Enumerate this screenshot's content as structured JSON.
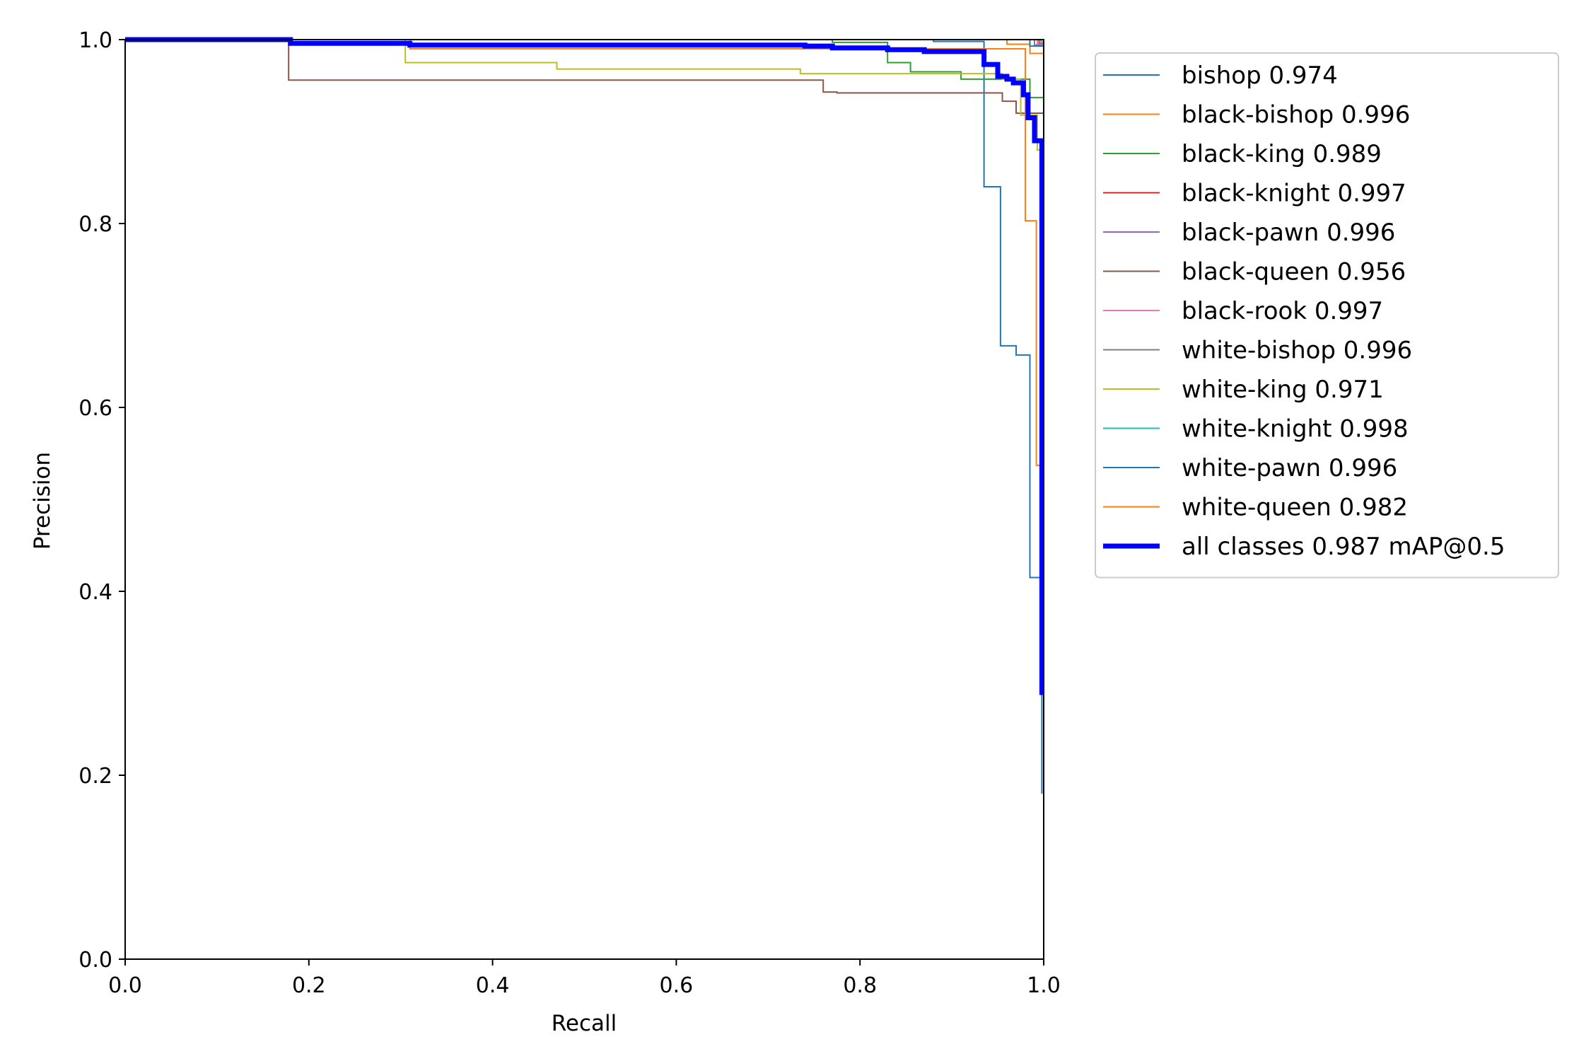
{
  "chart_data": {
    "type": "line",
    "title": "",
    "xlabel": "Recall",
    "ylabel": "Precision",
    "xlim": [
      0,
      1
    ],
    "ylim": [
      0,
      1
    ],
    "xticks": [
      0.0,
      0.2,
      0.4,
      0.6,
      0.8,
      1.0
    ],
    "yticks": [
      0.0,
      0.2,
      0.4,
      0.6,
      0.8,
      1.0
    ],
    "xtick_labels": [
      "0.0",
      "0.2",
      "0.4",
      "0.6",
      "0.8",
      "1.0"
    ],
    "ytick_labels": [
      "0.0",
      "0.2",
      "0.4",
      "0.6",
      "0.8",
      "1.0"
    ],
    "grid": false,
    "legend_position": "outside-right-top",
    "series": [
      {
        "name": "bishop 0.974",
        "color": "#1f77b4",
        "width": "thin",
        "x": [
          0,
          0.88,
          0.88,
          0.935,
          0.935,
          0.953,
          0.953,
          0.97,
          0.97,
          0.985,
          0.985,
          0.998,
          0.998
        ],
        "y": [
          1.0,
          1.0,
          0.998,
          0.998,
          0.84,
          0.84,
          0.667,
          0.667,
          0.657,
          0.657,
          0.415,
          0.415,
          0.18
        ]
      },
      {
        "name": "black-bishop 0.996",
        "color": "#ff7f0e",
        "width": "thin",
        "x": [
          0,
          0.96,
          0.96,
          0.985,
          0.985,
          1.0,
          1.0
        ],
        "y": [
          1.0,
          1.0,
          0.995,
          0.995,
          0.985,
          0.985,
          0.0
        ]
      },
      {
        "name": "black-king 0.989",
        "color": "#2ca02c",
        "width": "thin",
        "x": [
          0,
          0.77,
          0.77,
          0.83,
          0.83,
          0.855,
          0.855,
          0.91,
          0.91,
          0.985,
          0.985,
          1.0,
          1.0
        ],
        "y": [
          1.0,
          1.0,
          0.997,
          0.997,
          0.975,
          0.975,
          0.965,
          0.965,
          0.957,
          0.957,
          0.937,
          0.937,
          0.0
        ]
      },
      {
        "name": "black-knight 0.997",
        "color": "#d62728",
        "width": "thin",
        "x": [
          0,
          0.995,
          0.995,
          1.0,
          1.0
        ],
        "y": [
          1.0,
          1.0,
          0.996,
          0.996,
          0.0
        ]
      },
      {
        "name": "black-pawn 0.996",
        "color": "#9467bd",
        "width": "thin",
        "x": [
          0,
          0.99,
          0.99,
          1.0,
          1.0
        ],
        "y": [
          1.0,
          1.0,
          0.993,
          0.993,
          0.0
        ]
      },
      {
        "name": "black-queen 0.956",
        "color": "#8c564b",
        "width": "thin",
        "x": [
          0,
          0.178,
          0.178,
          0.76,
          0.76,
          0.775,
          0.775,
          0.955,
          0.955,
          0.97,
          0.97,
          1.0,
          1.0
        ],
        "y": [
          1.0,
          1.0,
          0.956,
          0.956,
          0.943,
          0.943,
          0.942,
          0.942,
          0.933,
          0.933,
          0.92,
          0.92,
          0.0
        ]
      },
      {
        "name": "black-rook 0.997",
        "color": "#e377c2",
        "width": "thin",
        "x": [
          0,
          0.993,
          0.993,
          1.0,
          1.0
        ],
        "y": [
          1.0,
          1.0,
          0.995,
          0.995,
          0.0
        ]
      },
      {
        "name": "white-bishop 0.996",
        "color": "#7f7f7f",
        "width": "thin",
        "x": [
          0,
          0.99,
          0.99,
          1.0,
          1.0
        ],
        "y": [
          1.0,
          1.0,
          0.994,
          0.994,
          0.0
        ]
      },
      {
        "name": "white-king 0.971",
        "color": "#bcbd22",
        "width": "thin",
        "x": [
          0,
          0.305,
          0.305,
          0.47,
          0.47,
          0.735,
          0.735,
          0.955,
          0.955,
          0.975,
          0.975,
          0.993,
          0.993,
          1.0,
          1.0
        ],
        "y": [
          1.0,
          1.0,
          0.975,
          0.975,
          0.968,
          0.968,
          0.963,
          0.963,
          0.957,
          0.957,
          0.918,
          0.918,
          0.88,
          0.88,
          0.0
        ]
      },
      {
        "name": "white-knight 0.998",
        "color": "#17becf",
        "width": "thin",
        "x": [
          0,
          0.997,
          0.997,
          1.0,
          1.0
        ],
        "y": [
          1.0,
          1.0,
          0.998,
          0.998,
          0.0
        ]
      },
      {
        "name": "white-pawn 0.996",
        "color": "#1f77b4",
        "width": "thin",
        "x": [
          0,
          0.985,
          0.985,
          1.0,
          1.0
        ],
        "y": [
          1.0,
          1.0,
          0.993,
          0.993,
          0.0
        ]
      },
      {
        "name": "white-queen 0.982",
        "color": "#ff7f0e",
        "width": "thin",
        "x": [
          0,
          0.31,
          0.31,
          0.98,
          0.98,
          0.992,
          0.992,
          0.997,
          0.997,
          1.0,
          1.0
        ],
        "y": [
          1.0,
          1.0,
          0.99,
          0.99,
          0.803,
          0.803,
          0.537,
          0.537,
          0.3,
          0.3,
          0.0
        ]
      },
      {
        "name": "all classes 0.987 mAP@0.5",
        "color": "#0000ff",
        "width": "thick",
        "x": [
          0,
          0.18,
          0.18,
          0.31,
          0.31,
          0.74,
          0.74,
          0.77,
          0.77,
          0.83,
          0.83,
          0.87,
          0.87,
          0.935,
          0.935,
          0.95,
          0.95,
          0.96,
          0.96,
          0.967,
          0.967,
          0.978,
          0.978,
          0.983,
          0.983,
          0.99,
          0.99,
          0.998,
          0.998,
          1.0
        ],
        "y": [
          1.0,
          1.0,
          0.996,
          0.996,
          0.994,
          0.994,
          0.993,
          0.993,
          0.991,
          0.991,
          0.989,
          0.989,
          0.987,
          0.987,
          0.973,
          0.973,
          0.96,
          0.96,
          0.957,
          0.957,
          0.953,
          0.953,
          0.94,
          0.94,
          0.915,
          0.915,
          0.89,
          0.89,
          0.29,
          0.29
        ]
      }
    ]
  }
}
